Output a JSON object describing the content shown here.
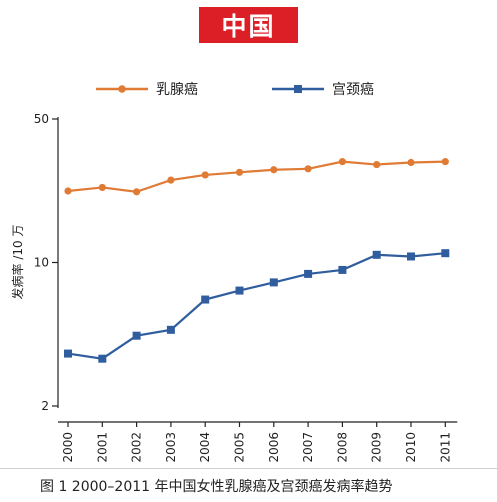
{
  "header": {
    "title": "中国"
  },
  "caption": "图 1  2000–2011 年中国女性乳腺癌及宫颈癌发病率趋势",
  "chart_data": {
    "type": "line",
    "ylabel": "发病率 /10 万",
    "xlabel": "",
    "yscale": "log",
    "ylim": [
      2,
      50
    ],
    "yticks": [
      {
        "value": 2,
        "label": "2"
      },
      {
        "value": 10,
        "label": "10"
      },
      {
        "value": 50,
        "label": "50"
      }
    ],
    "x": [
      "2000",
      "2001",
      "2002",
      "2003",
      "2004",
      "2005",
      "2006",
      "2007",
      "2008",
      "2009",
      "2010",
      "2011"
    ],
    "series": [
      {
        "name": "乳腺癌",
        "color": "#e07b36",
        "marker": "circle",
        "values": [
          22.3,
          23.2,
          22.1,
          25.2,
          26.7,
          27.5,
          28.3,
          28.6,
          31.0,
          30.0,
          30.7,
          31.0
        ]
      },
      {
        "name": "宫颈癌",
        "color": "#2f5d9e",
        "marker": "square",
        "values": [
          3.6,
          3.4,
          4.4,
          4.7,
          6.6,
          7.3,
          8.0,
          8.8,
          9.2,
          10.9,
          10.7,
          11.1
        ]
      }
    ],
    "legend_position": "top",
    "grid": false
  }
}
